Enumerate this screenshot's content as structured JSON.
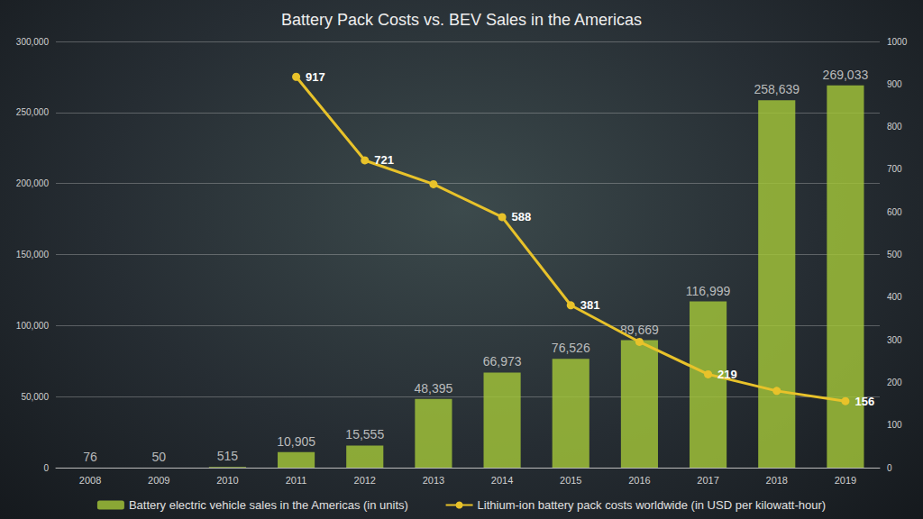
{
  "chart_data": {
    "type": "bar",
    "title": "Battery Pack Costs vs. BEV Sales in the Americas",
    "categories": [
      "2008",
      "2009",
      "2010",
      "2011",
      "2012",
      "2013",
      "2014",
      "2015",
      "2016",
      "2017",
      "2018",
      "2019"
    ],
    "series": [
      {
        "name": "Battery electric vehicle sales in the Americas (in units)",
        "type": "bar",
        "color": "#a4c639",
        "values": [
          76,
          50,
          515,
          10905,
          15555,
          48395,
          66973,
          76526,
          89669,
          116999,
          258639,
          269033
        ],
        "value_labels": [
          "76",
          "50",
          "515",
          "10,905",
          "15,555",
          "48,395",
          "66,973",
          "76,526",
          "89,669",
          "116,999",
          "258,639",
          "269,033"
        ]
      },
      {
        "name": "Lithium-ion battery pack costs worldwide (in USD per kilowatt-hour)",
        "type": "line",
        "color": "#e8c22a",
        "marker": "circle",
        "axis": "y2",
        "values": [
          null,
          null,
          null,
          917,
          721,
          665,
          588,
          381,
          295,
          219,
          180,
          156
        ],
        "value_labels": [
          null,
          null,
          null,
          "917",
          "721",
          null,
          "588",
          "381",
          null,
          "219",
          null,
          "156"
        ]
      }
    ],
    "ylim": [
      0,
      300000
    ],
    "yticks": [
      0,
      {
        "value": 50000,
        "label": "50,000"
      },
      {
        "value": 100000,
        "label": "100,000"
      },
      {
        "value": 150000,
        "label": "150,000"
      },
      {
        "value": 200000,
        "label": "200,000"
      },
      {
        "value": 250000,
        "label": "250,000"
      },
      {
        "value": 300000,
        "label": "300,000"
      }
    ],
    "y2lim": [
      0,
      1000
    ],
    "y2ticks": [
      0,
      100,
      200,
      300,
      400,
      500,
      600,
      700,
      800,
      900,
      1000
    ],
    "grid": true,
    "legend": "bottom",
    "data_labels": true
  }
}
